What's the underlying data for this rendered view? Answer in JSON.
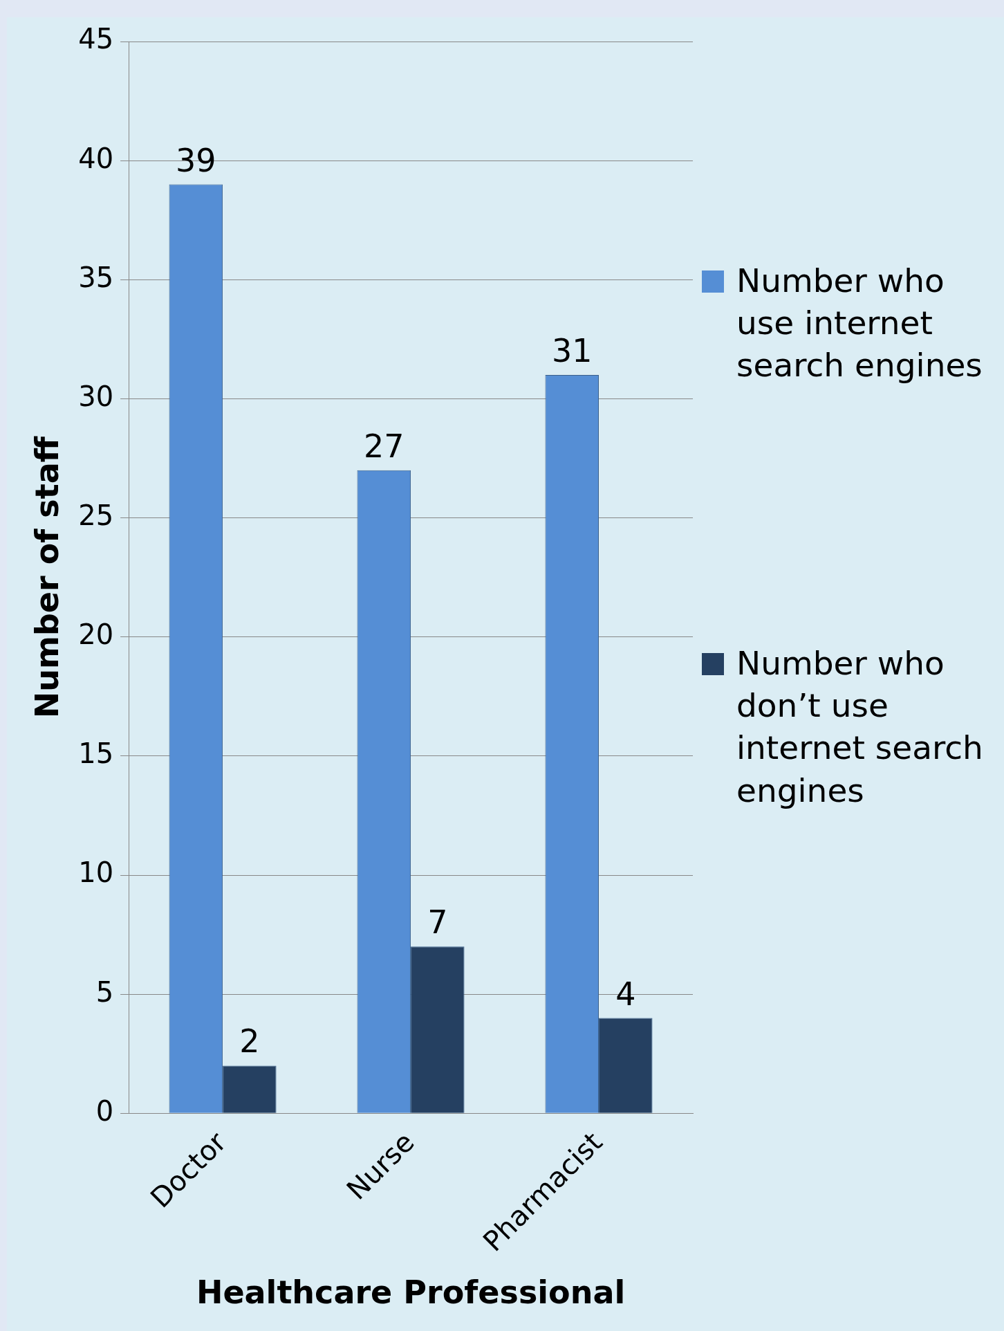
{
  "chart_data": {
    "type": "bar",
    "xlabel": "Healthcare Professional",
    "ylabel": "Number of staff",
    "categories": [
      "Doctor",
      "Nurse",
      "Pharmacist"
    ],
    "series": [
      {
        "name": "Number who use internet search engines",
        "color": "#558ed5",
        "values": [
          39,
          27,
          31
        ]
      },
      {
        "name": "Number who don’t use internet search engines",
        "color": "#254061",
        "values": [
          2,
          7,
          4
        ]
      }
    ],
    "ylim": [
      0,
      45
    ],
    "yticks": [
      0,
      5,
      10,
      15,
      20,
      25,
      30,
      35,
      40,
      45
    ],
    "grid": "y",
    "legend": "right",
    "data_labels": true
  }
}
